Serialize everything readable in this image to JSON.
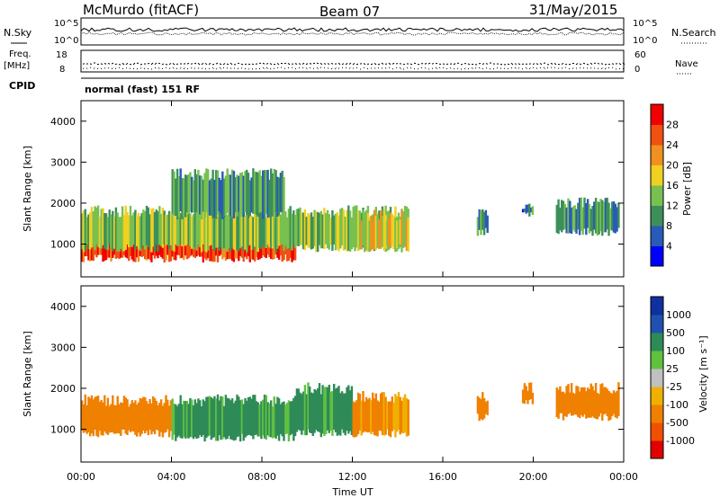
{
  "header": {
    "station": "McMurdo (fitACF)",
    "beam": "Beam 07",
    "date": "31/May/2015"
  },
  "noise_panel": {
    "left_label": "N.Sky",
    "right_label": "N.Search",
    "left_ticks": [
      "10^5",
      "10^0"
    ],
    "right_ticks": [
      "10^5",
      "10^0"
    ]
  },
  "freq_panel": {
    "left_label_1": "Freq.",
    "left_label_2": "[MHz]",
    "left_ticks": [
      "18",
      "8"
    ],
    "right_label": "Nave",
    "right_ticks": [
      "60",
      "0"
    ]
  },
  "cpid": {
    "label": "CPID",
    "text": "normal (fast) 151 RF"
  },
  "colors": {
    "power_scale": [
      "#0000ff",
      "#2a5ab8",
      "#3c8f5a",
      "#78c050",
      "#f0d020",
      "#f09020",
      "#f05010",
      "#f00000"
    ],
    "velocity_scale": [
      "#e00000",
      "#f05000",
      "#f08000",
      "#f0b000",
      "#c0c0c0",
      "#60c040",
      "#2e8b57",
      "#2050b0",
      "#1030a0"
    ]
  },
  "chart_data": [
    {
      "type": "heatmap",
      "quantity": "Power",
      "ylabel": "Slant Range [km]",
      "y_ticks": [
        "1000",
        "2000",
        "3000",
        "4000"
      ],
      "ylim": [
        200,
        4500
      ],
      "xlim": [
        0,
        24
      ],
      "colorbar_label": "Power [dB]",
      "colorbar_ticks": [
        "4",
        "8",
        "12",
        "16",
        "20",
        "24",
        "28"
      ],
      "colorbar_range": [
        0,
        32
      ],
      "regions": [
        {
          "t0": 0.0,
          "t1": 9.5,
          "r0": 650,
          "r1": 1500,
          "value": 28
        },
        {
          "t0": 0.0,
          "t1": 14.5,
          "r0": 900,
          "r1": 1800,
          "value": 14
        },
        {
          "t0": 4.0,
          "t1": 9.0,
          "r0": 1700,
          "r1": 2700,
          "value": 10
        },
        {
          "t0": 12.0,
          "t1": 14.5,
          "r0": 900,
          "r1": 1700,
          "value": 18
        },
        {
          "t0": 17.5,
          "t1": 18.0,
          "r0": 1300,
          "r1": 1800,
          "value": 12
        },
        {
          "t0": 19.5,
          "t1": 20.0,
          "r0": 1700,
          "r1": 2000,
          "value": 8
        },
        {
          "t0": 21.0,
          "t1": 23.8,
          "r0": 1300,
          "r1": 2000,
          "value": 10
        }
      ]
    },
    {
      "type": "heatmap",
      "quantity": "Velocity",
      "ylabel": "Slant Range [km]",
      "y_ticks": [
        "1000",
        "2000",
        "3000",
        "4000"
      ],
      "ylim": [
        200,
        4500
      ],
      "xlim": [
        0,
        24
      ],
      "xlabel": "Time UT",
      "x_ticks": [
        "00:00",
        "04:00",
        "08:00",
        "12:00",
        "16:00",
        "20:00",
        "00:00"
      ],
      "colorbar_label": "Velocity [m s⁻¹]",
      "colorbar_ticks": [
        "-1000",
        "-500",
        "-100",
        "-25",
        "25",
        "100",
        "500",
        "1000"
      ],
      "regions": [
        {
          "t0": 0.0,
          "t1": 4.0,
          "r0": 900,
          "r1": 1700,
          "value": -200
        },
        {
          "t0": 4.0,
          "t1": 9.5,
          "r0": 800,
          "r1": 1700,
          "value": 150
        },
        {
          "t0": 9.5,
          "t1": 12.0,
          "r0": 900,
          "r1": 2000,
          "value": 150
        },
        {
          "t0": 12.0,
          "t1": 14.5,
          "r0": 900,
          "r1": 1800,
          "value": -150
        },
        {
          "t0": 17.5,
          "t1": 18.0,
          "r0": 1300,
          "r1": 1800,
          "value": -200
        },
        {
          "t0": 19.5,
          "t1": 20.0,
          "r0": 1700,
          "r1": 2000,
          "value": -200
        },
        {
          "t0": 21.0,
          "t1": 23.8,
          "r0": 1300,
          "r1": 2000,
          "value": -250
        }
      ]
    }
  ]
}
